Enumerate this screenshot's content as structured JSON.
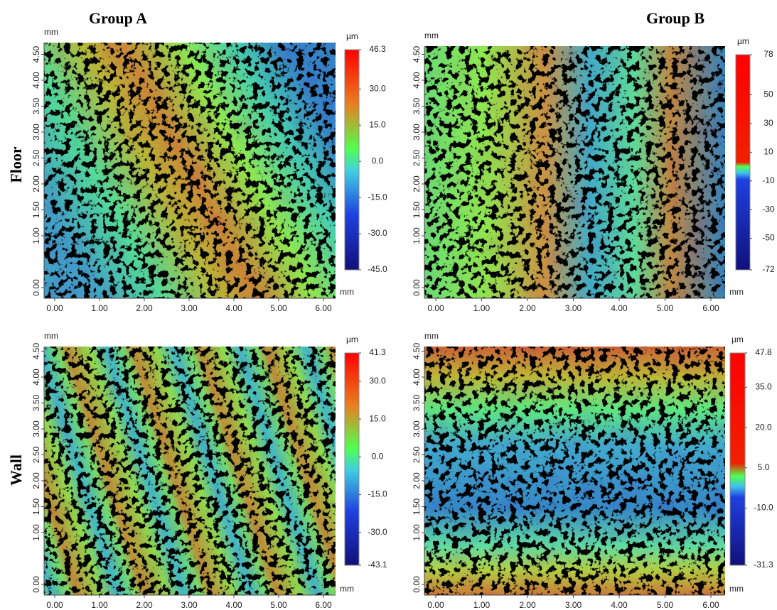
{
  "headers": {
    "group_a": "Group A",
    "group_b": "Group B",
    "floor": "Floor",
    "wall": "Wall"
  },
  "panels": [
    {
      "x_unit": "mm",
      "y_unit": "mm",
      "z_unit": "µm",
      "xticks": [
        {
          "value": 0,
          "label": "0.00"
        },
        {
          "value": 1,
          "label": "1.00"
        },
        {
          "value": 2,
          "label": "2.00"
        },
        {
          "value": 3,
          "label": "3.00"
        },
        {
          "value": 4,
          "label": "4.00"
        },
        {
          "value": 5,
          "label": "5.00"
        },
        {
          "value": 6,
          "label": "6.00"
        }
      ],
      "yticks": [
        {
          "value": 0,
          "label": "0.00"
        },
        {
          "value": 1,
          "label": "1.00"
        },
        {
          "value": 1.5,
          "label": "1.50"
        },
        {
          "value": 2,
          "label": "2.00"
        },
        {
          "value": 2.5,
          "label": "2.50"
        },
        {
          "value": 3,
          "label": "3.00"
        },
        {
          "value": 3.5,
          "label": "3.50"
        },
        {
          "value": 4,
          "label": "4.00"
        },
        {
          "value": 4.5,
          "label": "4.50"
        }
      ],
      "colorbar": [
        46.3,
        {
          "value": 30,
          "label": "30.0"
        },
        {
          "value": 15,
          "label": "15.0"
        },
        {
          "value": 0,
          "label": "0.0"
        },
        {
          "value": -15,
          "label": "-15.0"
        },
        {
          "value": -30,
          "label": "-30.0"
        },
        {
          "value": -45,
          "label": "-45.0"
        }
      ]
    },
    {
      "x_unit": "mm",
      "y_unit": "mm",
      "z_unit": "µm",
      "xticks": [
        {
          "value": 0,
          "label": "0.00"
        },
        {
          "value": 1,
          "label": "1.00"
        },
        {
          "value": 2,
          "label": "2.00"
        },
        {
          "value": 3,
          "label": "3.00"
        },
        {
          "value": 4,
          "label": "4.00"
        },
        {
          "value": 5,
          "label": "5.00"
        },
        {
          "value": 6,
          "label": "6.00"
        }
      ],
      "yticks": [
        {
          "value": 0,
          "label": "0.00"
        },
        {
          "value": 1,
          "label": "1.00"
        },
        {
          "value": 1.5,
          "label": "1.50"
        },
        {
          "value": 2,
          "label": "2.00"
        },
        {
          "value": 2.5,
          "label": "2.50"
        },
        {
          "value": 3,
          "label": "3.00"
        },
        {
          "value": 3.5,
          "label": "3.50"
        },
        {
          "value": 4,
          "label": "4.00"
        },
        {
          "value": 4.5,
          "label": "4.50"
        }
      ],
      "colorbar": [
        78,
        50,
        30,
        10,
        -10,
        -30,
        -50,
        -72
      ]
    },
    {
      "x_unit": "mm",
      "y_unit": "mm",
      "z_unit": "µm",
      "xticks": [
        {
          "value": 0,
          "label": "0.00"
        },
        {
          "value": 1,
          "label": "1.00"
        },
        {
          "value": 2,
          "label": "2.00"
        },
        {
          "value": 3,
          "label": "3.00"
        },
        {
          "value": 4,
          "label": "4.00"
        },
        {
          "value": 5,
          "label": "5.00"
        },
        {
          "value": 6,
          "label": "6.00"
        }
      ],
      "yticks": [
        {
          "value": 0,
          "label": "0.00"
        },
        {
          "value": 1,
          "label": "1.00"
        },
        {
          "value": 1.5,
          "label": "1.50"
        },
        {
          "value": 2,
          "label": "2.00"
        },
        {
          "value": 2.5,
          "label": "2.50"
        },
        {
          "value": 3,
          "label": "3.00"
        },
        {
          "value": 3.5,
          "label": "3.50"
        },
        {
          "value": 4,
          "label": "4.00"
        },
        {
          "value": 4.5,
          "label": "4.50"
        }
      ],
      "colorbar": [
        41.3,
        {
          "value": 30,
          "label": "30.0"
        },
        {
          "value": 15,
          "label": "15.0"
        },
        {
          "value": 0,
          "label": "0.0"
        },
        {
          "value": -15,
          "label": "-15.0"
        },
        {
          "value": -30,
          "label": "-30.0"
        },
        -43.1
      ]
    },
    {
      "x_unit": "mm",
      "y_unit": "mm",
      "z_unit": "µm",
      "xticks": [
        {
          "value": 0,
          "label": "0.00"
        },
        {
          "value": 1,
          "label": "1.00"
        },
        {
          "value": 2,
          "label": "2.00"
        },
        {
          "value": 3,
          "label": "3.00"
        },
        {
          "value": 4,
          "label": "4.00"
        },
        {
          "value": 5,
          "label": "5.00"
        },
        {
          "value": 6,
          "label": "6.00"
        }
      ],
      "yticks": [
        {
          "value": 0,
          "label": "0.00"
        },
        {
          "value": 1,
          "label": "1.00"
        },
        {
          "value": 1.5,
          "label": "1.50"
        },
        {
          "value": 2,
          "label": "2.00"
        },
        {
          "value": 2.5,
          "label": "2.50"
        },
        {
          "value": 3,
          "label": "3.00"
        },
        {
          "value": 3.5,
          "label": "3.50"
        },
        {
          "value": 4,
          "label": "4.00"
        },
        {
          "value": 4.5,
          "label": "4.50"
        }
      ],
      "colorbar": [
        47.8,
        {
          "value": 35,
          "label": "35.0"
        },
        {
          "value": 20,
          "label": "20.0"
        },
        {
          "value": 5,
          "label": "5.0"
        },
        {
          "value": -10,
          "label": "-10.0"
        },
        -31.3
      ]
    }
  ]
}
